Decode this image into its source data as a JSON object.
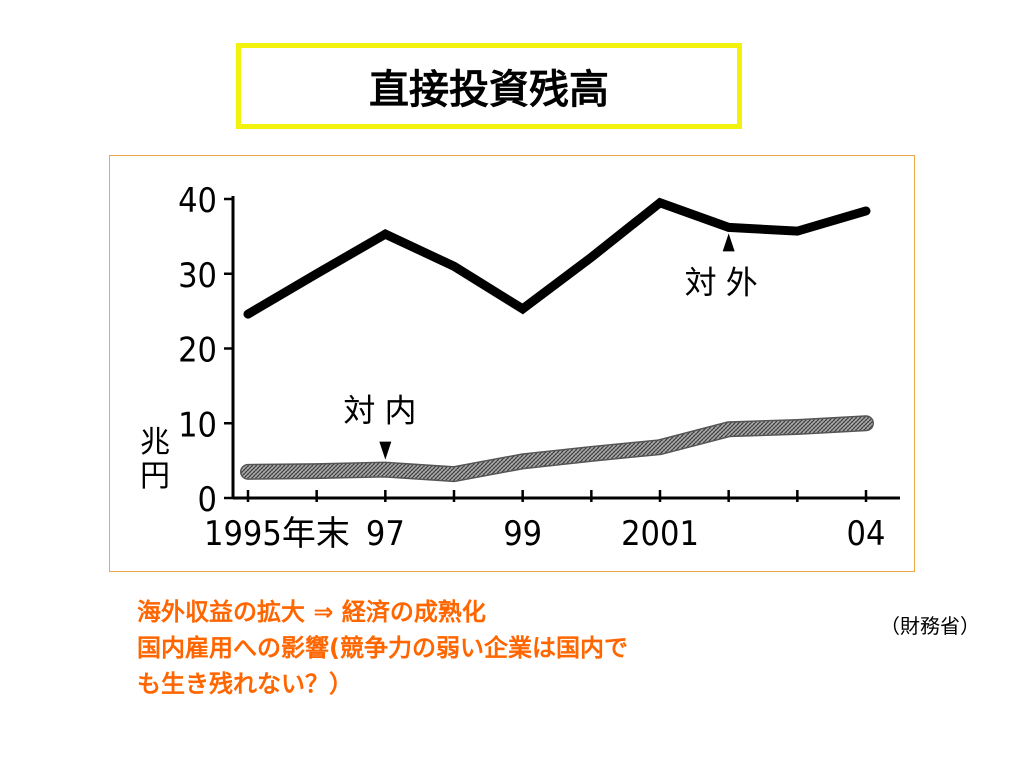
{
  "slide": {
    "title": "直接投資残高",
    "source": "（財務省）",
    "notes": [
      "海外収益の拡大 ⇒ 経済の成熟化",
      "国内雇用への影響(競争力の弱い企業は国内で",
      "も生き残れない？）"
    ]
  },
  "chart_data": {
    "type": "line",
    "title": "",
    "xlabel": "",
    "ylabel": "兆円",
    "ylim": [
      0,
      40
    ],
    "yticks": [
      "0",
      "10",
      "20",
      "30",
      "40"
    ],
    "xtick_labels": [
      {
        "x": 1995,
        "label": "1995年末"
      },
      {
        "x": 1997,
        "label": "97"
      },
      {
        "x": 1999,
        "label": "99"
      },
      {
        "x": 2001,
        "label": "2001"
      },
      {
        "x": 2004,
        "label": "04"
      }
    ],
    "xlim": [
      1995,
      2004
    ],
    "series": [
      {
        "name": "対 外",
        "color": "#000000",
        "style": "solid",
        "points": [
          [
            1995,
            24.6
          ],
          [
            1996,
            30.0
          ],
          [
            1997,
            35.3
          ],
          [
            1998,
            31.0
          ],
          [
            1999,
            25.3
          ],
          [
            2000,
            32.2
          ],
          [
            2001,
            39.5
          ],
          [
            2002,
            36.2
          ],
          [
            2003,
            35.7
          ],
          [
            2004,
            38.4
          ]
        ]
      },
      {
        "name": "対 内",
        "color": "#8a8a8a",
        "style": "hatched",
        "points": [
          [
            1995,
            3.5
          ],
          [
            1996,
            3.6
          ],
          [
            1997,
            3.8
          ],
          [
            1998,
            3.2
          ],
          [
            1999,
            4.9
          ],
          [
            2000,
            5.9
          ],
          [
            2001,
            6.8
          ],
          [
            2002,
            9.2
          ],
          [
            2003,
            9.5
          ],
          [
            2004,
            10.0
          ]
        ]
      }
    ]
  }
}
